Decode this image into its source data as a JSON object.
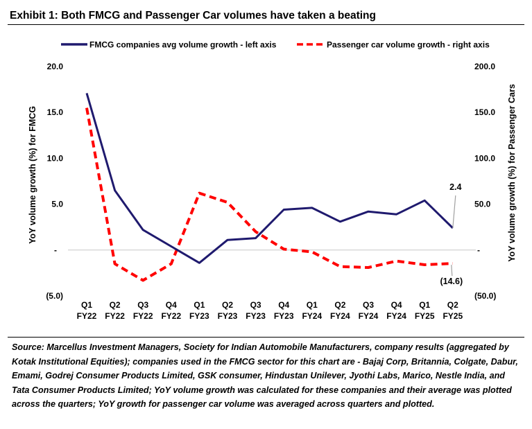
{
  "title": "Exhibit 1: Both FMCG and Passenger Car volumes have taken a beating",
  "source_note": "Source: Marcellus Investment Managers, Society for Indian Automobile Manufacturers, company results (aggregated by Kotak Institutional Equities); companies used in the FMCG sector for this chart are - Bajaj Corp, Britannia, Colgate, Dabur, Emami, Godrej Consumer Products Limited, GSK consumer, Hindustan Unilever, Jyothi Labs, Marico, Nestle India, and Tata Consumer Products Limited; YoY volume growth was calculated for these companies and their average was plotted across the quarters; YoY growth for passenger car volume was averaged across quarters and plotted.",
  "chart_data": {
    "type": "line",
    "categories": [
      [
        "Q1",
        "FY22"
      ],
      [
        "Q2",
        "FY22"
      ],
      [
        "Q3",
        "FY22"
      ],
      [
        "Q4",
        "FY22"
      ],
      [
        "Q1",
        "FY23"
      ],
      [
        "Q2",
        "FY23"
      ],
      [
        "Q3",
        "FY23"
      ],
      [
        "Q4",
        "FY23"
      ],
      [
        "Q1",
        "FY24"
      ],
      [
        "Q2",
        "FY24"
      ],
      [
        "Q3",
        "FY24"
      ],
      [
        "Q4",
        "FY24"
      ],
      [
        "Q1",
        "FY25"
      ],
      [
        "Q2",
        "FY25"
      ]
    ],
    "left_axis": {
      "label": "YoY volume growth (%) for FMCG",
      "ylim": [
        -5,
        20
      ],
      "ticks": [
        20,
        15,
        10,
        5,
        0,
        -5
      ],
      "tick_labels": [
        "20.0",
        "15.0",
        "10.0",
        "5.0",
        "-",
        "(5.0)"
      ]
    },
    "right_axis": {
      "label": "YoY volume growth (%) for Passenger Cars",
      "ylim": [
        -50,
        200
      ],
      "ticks": [
        200,
        150,
        100,
        50,
        0,
        -50
      ],
      "tick_labels": [
        "200.0",
        "150.0",
        "100.0",
        "50.0",
        "-",
        "(50.0)"
      ]
    },
    "series": [
      {
        "name": "FMCG companies avg volume growth - left axis",
        "axis": "left",
        "color": "#1f1a6e",
        "style": "solid",
        "values": [
          17.1,
          6.5,
          2.2,
          0.4,
          -1.4,
          1.1,
          1.3,
          4.4,
          4.6,
          3.1,
          4.2,
          3.9,
          5.4,
          2.4
        ]
      },
      {
        "name": "Passenger car volume growth - right axis",
        "axis": "right",
        "color": "#ff0000",
        "style": "dashed",
        "values": [
          155,
          -15,
          -33,
          -15,
          62,
          52,
          20,
          1,
          -2,
          -18,
          -19,
          -12,
          -16,
          -14.6
        ]
      }
    ],
    "annotations": [
      {
        "text": "2.4",
        "series": 0,
        "index": 13
      },
      {
        "text": "(14.6)",
        "series": 1,
        "index": 13
      }
    ],
    "legend": "top",
    "grid": false
  }
}
